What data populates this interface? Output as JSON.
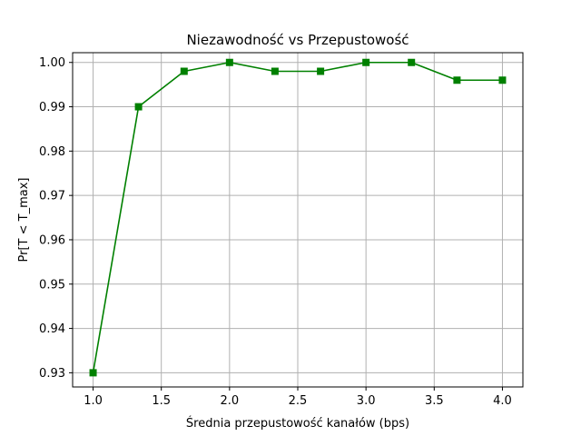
{
  "chart_data": {
    "type": "line",
    "title": "Niezawodność vs Przepustowość",
    "xlabel": "Średnia przepustowość kanałów (bps)",
    "ylabel": "Pr[T < T_max]",
    "xlim": [
      0.85,
      4.15
    ],
    "ylim": [
      0.9268,
      1.0022
    ],
    "xticks": [
      1.0,
      1.5,
      2.0,
      2.5,
      3.0,
      3.5,
      4.0
    ],
    "xtick_labels": [
      "1.0",
      "1.5",
      "2.0",
      "2.5",
      "3.0",
      "3.5",
      "4.0"
    ],
    "yticks": [
      0.93,
      0.94,
      0.95,
      0.96,
      0.97,
      0.98,
      0.99,
      1.0
    ],
    "ytick_labels": [
      "0.93",
      "0.94",
      "0.95",
      "0.96",
      "0.97",
      "0.98",
      "0.99",
      "1.00"
    ],
    "grid": true,
    "marker": "square",
    "series": [
      {
        "color": "#008000",
        "x": [
          1.0,
          1.333,
          1.667,
          2.0,
          2.333,
          2.667,
          3.0,
          3.333,
          3.667,
          4.0
        ],
        "y": [
          0.93,
          0.99,
          0.998,
          1.0,
          0.998,
          0.998,
          1.0,
          1.0,
          0.996,
          0.996
        ]
      }
    ]
  }
}
